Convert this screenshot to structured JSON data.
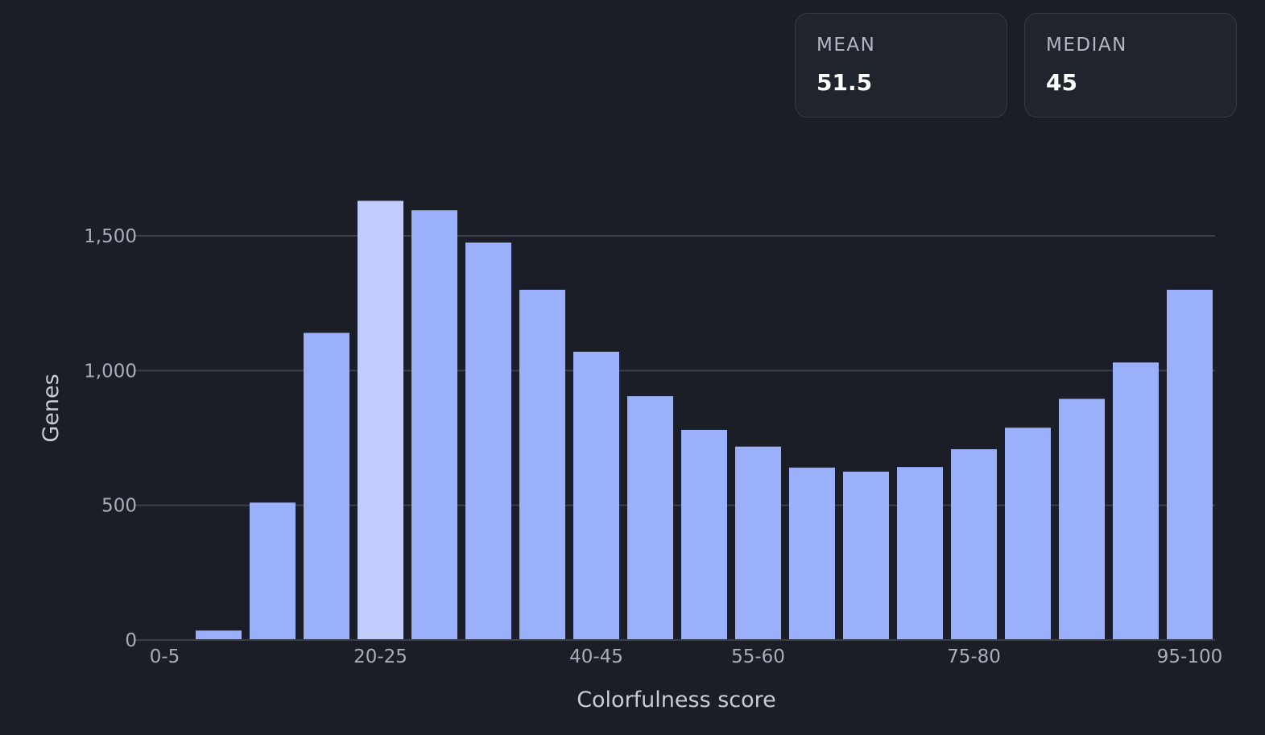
{
  "stats": [
    {
      "label": "MEAN",
      "value": "51.5"
    },
    {
      "label": "MEDIAN",
      "value": "45"
    }
  ],
  "colors": {
    "background": "#1b1e27",
    "bar": "#9bb0fa",
    "bar_highlight": "#bfccfc",
    "grid": "#3a3e4a"
  },
  "chart_data": {
    "type": "bar",
    "xlabel": "Colorfulness score",
    "ylabel": "Genes",
    "ylim": [
      0,
      1800
    ],
    "yticks": [
      0,
      500,
      1000,
      1500
    ],
    "ytick_labels": [
      "0",
      "500",
      "1,000",
      "1,500"
    ],
    "grid": true,
    "categories": [
      "0-5",
      "5-10",
      "10-15",
      "15-20",
      "20-25",
      "25-30",
      "30-35",
      "35-40",
      "40-45",
      "45-50",
      "50-55",
      "55-60",
      "60-65",
      "65-70",
      "70-75",
      "75-80",
      "80-85",
      "85-90",
      "90-95",
      "95-100"
    ],
    "shown_xtick_labels": [
      "0-5",
      "20-25",
      "40-45",
      "55-60",
      "75-80",
      "95-100"
    ],
    "values": [
      0,
      35,
      510,
      1140,
      1630,
      1595,
      1475,
      1300,
      1070,
      905,
      780,
      718,
      640,
      625,
      642,
      708,
      788,
      895,
      1030,
      1300
    ],
    "highlighted_category": "20-25"
  }
}
